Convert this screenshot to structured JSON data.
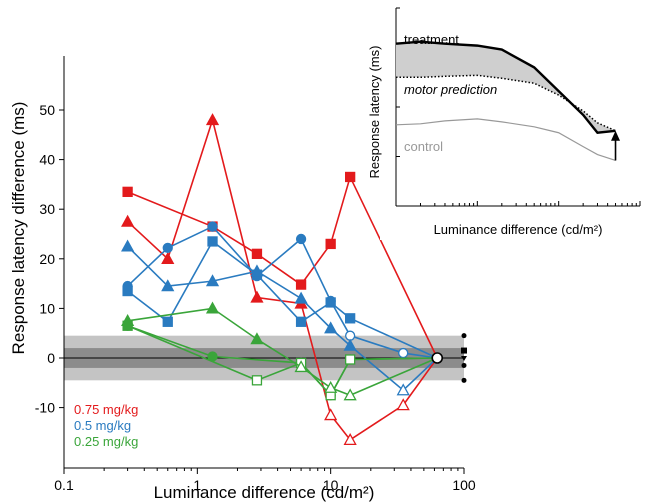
{
  "chart_data": [
    {
      "type": "line",
      "xlabel": "Luminance difference (cd/m²)",
      "ylabel": "Response latency difference (ms)",
      "xscale": "log",
      "xlim": [
        0.1,
        100
      ],
      "ylim": [
        -22,
        60
      ],
      "xticks": [
        0.1,
        1,
        10,
        100
      ],
      "xtick_labels": [
        "0.1",
        "1",
        "10",
        "100"
      ],
      "yticks": [
        -10,
        0,
        10,
        20,
        30,
        40,
        50
      ],
      "ytick_labels": [
        "-10",
        "0",
        "10",
        "20",
        "30",
        "40",
        "50"
      ],
      "bands": [
        {
          "y0": -4.5,
          "y1": 4.5,
          "color": "#c4c4c4"
        },
        {
          "y0": -2,
          "y1": 2,
          "color": "#8c8c8c"
        }
      ],
      "baseline_y": 0,
      "legend": [
        {
          "label": "0.75 mg/kg",
          "color": "#e31a1c"
        },
        {
          "label": "0.5 mg/kg",
          "color": "#2a7bc0"
        },
        {
          "label": "0.25 mg/kg",
          "color": "#3aa53a"
        }
      ],
      "legend_placement": "bottom-left",
      "series": [
        {
          "group": "0.75 mg/kg",
          "color": "#e31a1c",
          "marker": "square",
          "x": [
            0.3,
            1.3,
            2.8,
            6,
            10,
            14,
            63
          ],
          "y": [
            33.5,
            26.5,
            21,
            14.8,
            23,
            36.5,
            0
          ],
          "open": [
            false,
            false,
            false,
            false,
            false,
            false,
            true
          ]
        },
        {
          "group": "0.75 mg/kg",
          "color": "#e31a1c",
          "marker": "triangle",
          "x": [
            0.3,
            0.6,
            1.3,
            2.8,
            6,
            10,
            14,
            35,
            63
          ],
          "y": [
            27.5,
            20,
            48,
            12.2,
            11,
            -11.5,
            -16.5,
            -9.5,
            0
          ],
          "open": [
            false,
            false,
            false,
            false,
            false,
            true,
            true,
            true,
            true
          ]
        },
        {
          "group": "0.5 mg/kg",
          "color": "#2a7bc0",
          "marker": "circle",
          "x": [
            0.3,
            0.6,
            1.3,
            2.8,
            6,
            10,
            14,
            35,
            63
          ],
          "y": [
            14.5,
            22.2,
            26.5,
            16.5,
            24,
            11.5,
            4.5,
            1,
            0
          ],
          "open": [
            false,
            false,
            false,
            false,
            false,
            false,
            true,
            true,
            true
          ]
        },
        {
          "group": "0.5 mg/kg",
          "color": "#2a7bc0",
          "marker": "square",
          "x": [
            0.3,
            0.6,
            1.3,
            2.8,
            6,
            10,
            14,
            63
          ],
          "y": [
            13.5,
            7.3,
            23.5,
            16.8,
            7.3,
            11.2,
            8,
            0
          ],
          "open": [
            false,
            false,
            false,
            false,
            false,
            false,
            false,
            true
          ]
        },
        {
          "group": "0.5 mg/kg",
          "color": "#2a7bc0",
          "marker": "triangle",
          "x": [
            0.3,
            0.6,
            1.3,
            2.8,
            6,
            10,
            14,
            35,
            63
          ],
          "y": [
            22.5,
            14.5,
            15.5,
            17.5,
            12,
            6,
            2.5,
            -6.5,
            0
          ],
          "open": [
            false,
            false,
            false,
            false,
            false,
            false,
            false,
            true,
            true
          ]
        },
        {
          "group": "0.25 mg/kg",
          "color": "#3aa53a",
          "marker": "circle",
          "x": [
            0.3,
            1.3,
            6,
            10,
            14,
            63
          ],
          "y": [
            6.5,
            0.3,
            -1,
            -7.5,
            -0.3,
            0
          ],
          "open": [
            false,
            false,
            true,
            true,
            true,
            true
          ]
        },
        {
          "group": "0.25 mg/kg",
          "color": "#3aa53a",
          "marker": "square",
          "x": [
            0.3,
            2.8,
            6,
            10,
            14,
            63
          ],
          "y": [
            6.5,
            -4.5,
            -1,
            -7.5,
            -0.3,
            0
          ],
          "open": [
            false,
            true,
            true,
            true,
            true,
            true
          ]
        },
        {
          "group": "0.25 mg/kg",
          "color": "#3aa53a",
          "marker": "triangle",
          "x": [
            0.3,
            1.3,
            2.8,
            6,
            10,
            14,
            63
          ],
          "y": [
            7.5,
            10,
            3.8,
            -1.8,
            -6,
            -7.5,
            0
          ],
          "open": [
            false,
            false,
            false,
            true,
            true,
            true,
            true
          ]
        }
      ],
      "right_markers": [
        {
          "y": 4.5,
          "marker": "dot"
        },
        {
          "y": 1.5,
          "marker": "square"
        },
        {
          "y": 0,
          "marker": "triangle"
        },
        {
          "y": -1.5,
          "marker": "dot"
        },
        {
          "y": -4.5,
          "marker": "dot"
        }
      ]
    },
    {
      "type": "line",
      "inset": true,
      "xlabel": "Luminance difference (cd/m²)",
      "ylabel": "Response latency (ms)",
      "xscale": "log",
      "xlim": [
        0.1,
        100
      ],
      "ylim": [
        0,
        100
      ],
      "xticks": [
        0.1,
        1,
        10,
        100
      ],
      "yticks": [
        25,
        50,
        75,
        100
      ],
      "series": [
        {
          "name": "treatment",
          "color": "#000000",
          "style": "thick",
          "x": [
            0.1,
            0.2,
            0.4,
            1,
            2,
            5,
            10,
            20,
            30,
            50
          ],
          "y": [
            82,
            83,
            82,
            81,
            79,
            70,
            58,
            46,
            37,
            38
          ]
        },
        {
          "name": "motor prediction",
          "color": "#000000",
          "style": "dotted",
          "x": [
            0.1,
            0.2,
            0.4,
            1,
            2,
            5,
            10,
            20,
            30,
            50
          ],
          "y": [
            65,
            65,
            65.5,
            66,
            64.5,
            62,
            56,
            48,
            42,
            38
          ]
        },
        {
          "name": "control",
          "color": "#999999",
          "style": "thin",
          "x": [
            0.1,
            0.2,
            0.4,
            1,
            2,
            5,
            10,
            20,
            30,
            50
          ],
          "y": [
            41,
            41.5,
            43,
            44,
            42.5,
            40,
            37,
            30,
            26,
            23
          ]
        }
      ],
      "labels": {
        "treatment": "treatment",
        "motor_prediction": "motor prediction",
        "control": "control"
      },
      "shaded_between": [
        "treatment",
        "motor prediction"
      ],
      "arrow": {
        "x": 50,
        "from_y": 23,
        "to_y": 38
      }
    }
  ]
}
